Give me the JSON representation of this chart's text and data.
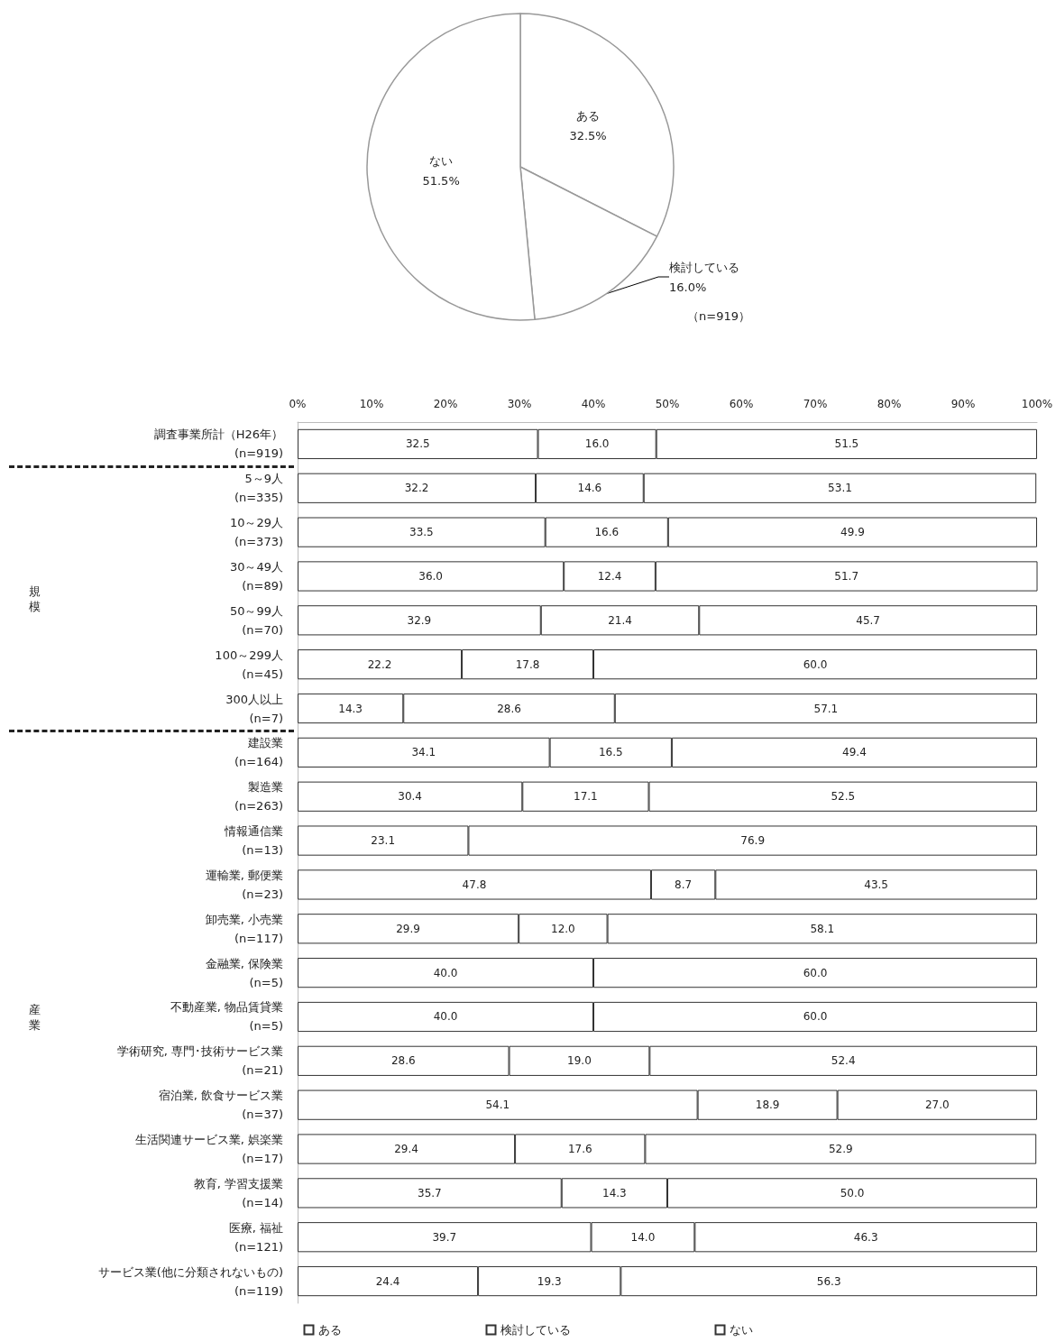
{
  "chart_data": [
    {
      "type": "pie",
      "categories": [
        "ある",
        "検討している",
        "ない"
      ],
      "values": [
        32.5,
        16.0,
        51.5
      ],
      "colors": [
        "#ffffff",
        "#ffffff",
        "#ffffff"
      ],
      "value_labels": [
        "32.5%",
        "16.0%",
        "51.5%"
      ],
      "annotations": [
        "（n=919）"
      ]
    },
    {
      "type": "bar",
      "orientation": "horizontal",
      "stacked": true,
      "categories": [
        "調査事業所計（H26年）\n(n=919)",
        "5～9人\n(n=335)",
        "10～29人\n(n=373)",
        "30～49人\n(n=89)",
        "50～99人\n(n=70)",
        "100～299人\n(n=45)",
        "300人以上\n(n=7)",
        "建設業\n(n=164)",
        "製造業\n(n=263)",
        "情報通信業\n(n=13)",
        "運輸業, 郵便業\n(n=23)",
        "卸売業, 小売業\n(n=117)",
        "金融業, 保険業\n(n=5)",
        "不動産業, 物品賃貸業\n(n=5)",
        "学術研究, 専門･技術サービス業\n(n=21)",
        "宿泊業, 飲食サービス業\n(n=37)",
        "生活関連サービス業, 娯楽業\n(n=17)",
        "教育, 学習支援業\n(n=14)",
        "医療, 福祉\n(n=121)",
        "サービス業(他に分類されないもの)\n(n=119)"
      ],
      "series": [
        {
          "name": "ある",
          "color": "#ffffff",
          "values": [
            32.5,
            32.2,
            33.5,
            36.0,
            32.9,
            22.2,
            14.3,
            34.1,
            30.4,
            23.1,
            47.8,
            29.9,
            40.0,
            40.0,
            28.6,
            54.1,
            29.4,
            35.7,
            39.7,
            24.4
          ],
          "value_labels": [
            "32.5",
            "32.2",
            "33.5",
            "36.0",
            "32.9",
            "22.2",
            "14.3",
            "34.1",
            "30.4",
            "23.1",
            "47.8",
            "29.9",
            "40.0",
            "40.0",
            "28.6",
            "54.1",
            "29.4",
            "35.7",
            "39.7",
            "24.4"
          ]
        },
        {
          "name": "検討している",
          "color": "#ffffff",
          "values": [
            16.0,
            14.6,
            16.6,
            12.4,
            21.4,
            17.8,
            28.6,
            16.5,
            17.1,
            null,
            8.7,
            12.0,
            null,
            null,
            19.0,
            18.9,
            17.6,
            14.3,
            14.0,
            19.3
          ],
          "value_labels": [
            "16.0",
            "14.6",
            "16.6",
            "12.4",
            "21.4",
            "17.8",
            "28.6",
            "16.5",
            "17.1",
            null,
            "8.7",
            "12.0",
            null,
            null,
            "19.0",
            "18.9",
            "17.6",
            "14.3",
            "14.0",
            "19.3"
          ]
        },
        {
          "name": "ない",
          "color": "#ffffff",
          "values": [
            51.5,
            53.1,
            49.9,
            51.7,
            45.7,
            60.0,
            57.1,
            49.4,
            52.5,
            76.9,
            43.5,
            58.1,
            60.0,
            60.0,
            52.4,
            27.0,
            52.9,
            50.0,
            46.3,
            56.3
          ],
          "value_labels": [
            "51.5",
            "53.1",
            "49.9",
            "51.7",
            "45.7",
            "60.0",
            "57.1",
            "49.4",
            "52.5",
            "76.9",
            "43.5",
            "58.1",
            "60.0",
            "60.0",
            "52.4",
            "27.0",
            "52.9",
            "50.0",
            "46.3",
            "56.3"
          ]
        }
      ],
      "xlim": [
        0,
        100
      ],
      "xticks": [
        {
          "value": 0,
          "label": "0%"
        },
        {
          "value": 10,
          "label": "10%"
        },
        {
          "value": 20,
          "label": "20%"
        },
        {
          "value": 30,
          "label": "30%"
        },
        {
          "value": 40,
          "label": "40%"
        },
        {
          "value": 50,
          "label": "50%"
        },
        {
          "value": 60,
          "label": "60%"
        },
        {
          "value": 70,
          "label": "70%"
        },
        {
          "value": 80,
          "label": "80%"
        },
        {
          "value": 90,
          "label": "90%"
        },
        {
          "value": 100,
          "label": "100%"
        }
      ],
      "grid": false,
      "legend": "bottom",
      "annotations": [
        "規模",
        "産業"
      ]
    }
  ]
}
